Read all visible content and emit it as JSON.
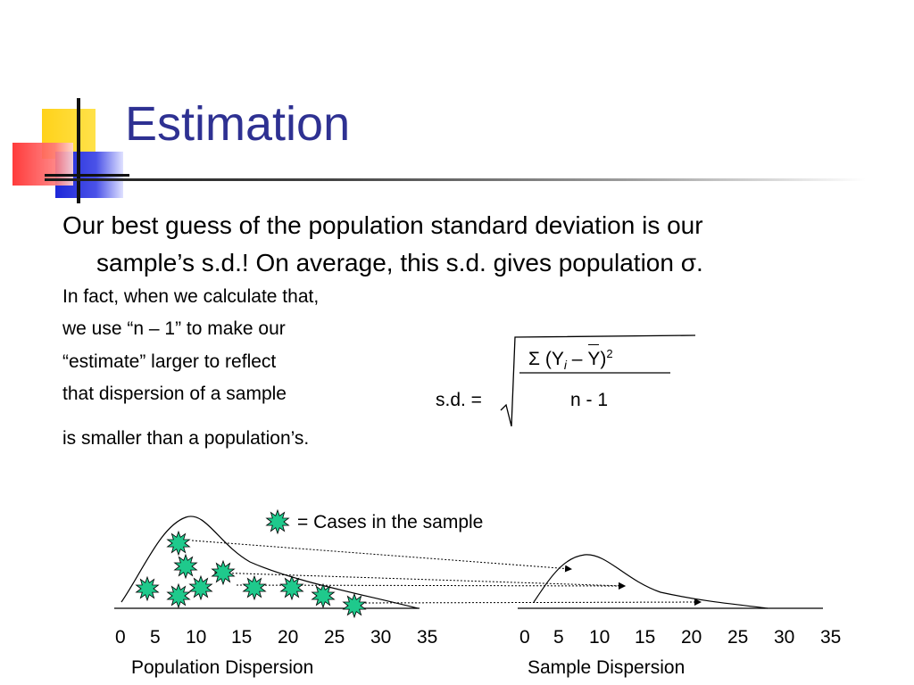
{
  "slide": {
    "title": "Estimation",
    "main_text_line1": "Our best guess of the population standard deviation is our",
    "main_text_line2": "sample’s s.d.!  On average, this s.d. gives population σ.",
    "note_lines": [
      "In fact, when we calculate that,",
      "we use “n – 1” to make our",
      "“estimate” larger to reflect",
      "that dispersion of a sample",
      "is smaller than a population’s."
    ]
  },
  "formula": {
    "lhs": "s.d. =",
    "sigma": "Σ",
    "open": "(Y",
    "sub": "i",
    "minus": " – ",
    "ybar": "Y",
    "close": ")",
    "exp": "2",
    "denominator": "n - 1"
  },
  "legend": {
    "text": "= Cases in the sample",
    "icon": "green-star-burst-icon"
  },
  "axes": {
    "ticks": [
      "0",
      "5",
      "10",
      "15",
      "20",
      "25",
      "30",
      "35"
    ],
    "population_caption": "Population Dispersion",
    "sample_caption": "Sample Dispersion"
  },
  "colors": {
    "title": "#2e3192",
    "case_marker": "#1fc98c"
  }
}
